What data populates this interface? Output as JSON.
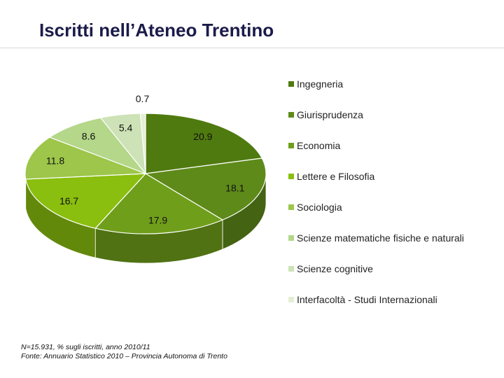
{
  "title": "Iscritti nell’Ateneo Trentino",
  "chart_data": {
    "type": "pie",
    "categories": [
      "Ingegneria",
      "Giurisprudenza",
      "Economia",
      "Lettere e Filosofia",
      "Sociologia",
      "Scienze matematiche fisiche e naturali",
      "Scienze cognitive",
      "Interfacoltà - Studi Internazionali"
    ],
    "values": [
      20.9,
      18.1,
      17.9,
      16.7,
      11.8,
      8.6,
      5.4,
      0.7
    ],
    "data_labels": [
      "20.9",
      "18.1",
      "17.9",
      "16.7",
      "11.8",
      "8.6",
      "5.4",
      "0.7"
    ],
    "colors": [
      "#4f7a0f",
      "#5e8a1a",
      "#6f9e1b",
      "#8abe0f",
      "#9dc64a",
      "#b4d78a",
      "#cde2b6",
      "#e3efd4"
    ],
    "legend_position": "right",
    "style": "3d"
  },
  "notes": [
    "N=15.931, % sugli iscritti, anno 2010/11",
    "Fonte: Annuario Statistico 2010 – Provincia Autonoma di Trento"
  ]
}
